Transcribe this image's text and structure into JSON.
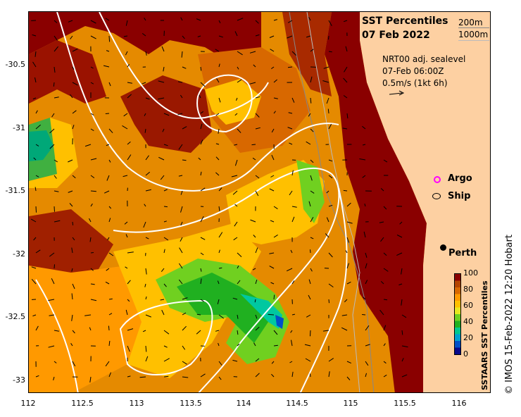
{
  "title": {
    "line1": "SST Percentiles",
    "line2": "07 Feb 2022"
  },
  "depth_contours": {
    "label1": "200m",
    "label2": "1000m"
  },
  "sea_level": {
    "line1": "NRT00 adj. sealevel",
    "line2": "07-Feb 06:00Z",
    "line3": "0.5m/s (1kt 6h)"
  },
  "legend": {
    "argo": "Argo",
    "ship": "Ship"
  },
  "place": {
    "perth": "Perth"
  },
  "axes": {
    "y_ticks": [
      "-30.5",
      "-31",
      "-31.5",
      "-32",
      "-32.5",
      "-33"
    ],
    "x_ticks": [
      "112",
      "112.5",
      "113",
      "113.5",
      "114",
      "114.5",
      "115",
      "115.5",
      "116"
    ],
    "lon_range": [
      112,
      116.3
    ],
    "lat_range": [
      -33.1,
      -30.1
    ]
  },
  "colorbar": {
    "title": "SSTAARS SST Percentiles",
    "ticks": [
      "100",
      "80",
      "60",
      "40",
      "20",
      "0"
    ],
    "colors": [
      "#08088a",
      "#0050c8",
      "#00a0d0",
      "#00c890",
      "#20b020",
      "#70d020",
      "#e8e820",
      "#ffc000",
      "#ff9900",
      "#d86800",
      "#b44400",
      "#8a0000"
    ]
  },
  "land_color": "#fdd0a2",
  "credit": "© IMOS 15-Feb-2022 12:20 Hobart"
}
